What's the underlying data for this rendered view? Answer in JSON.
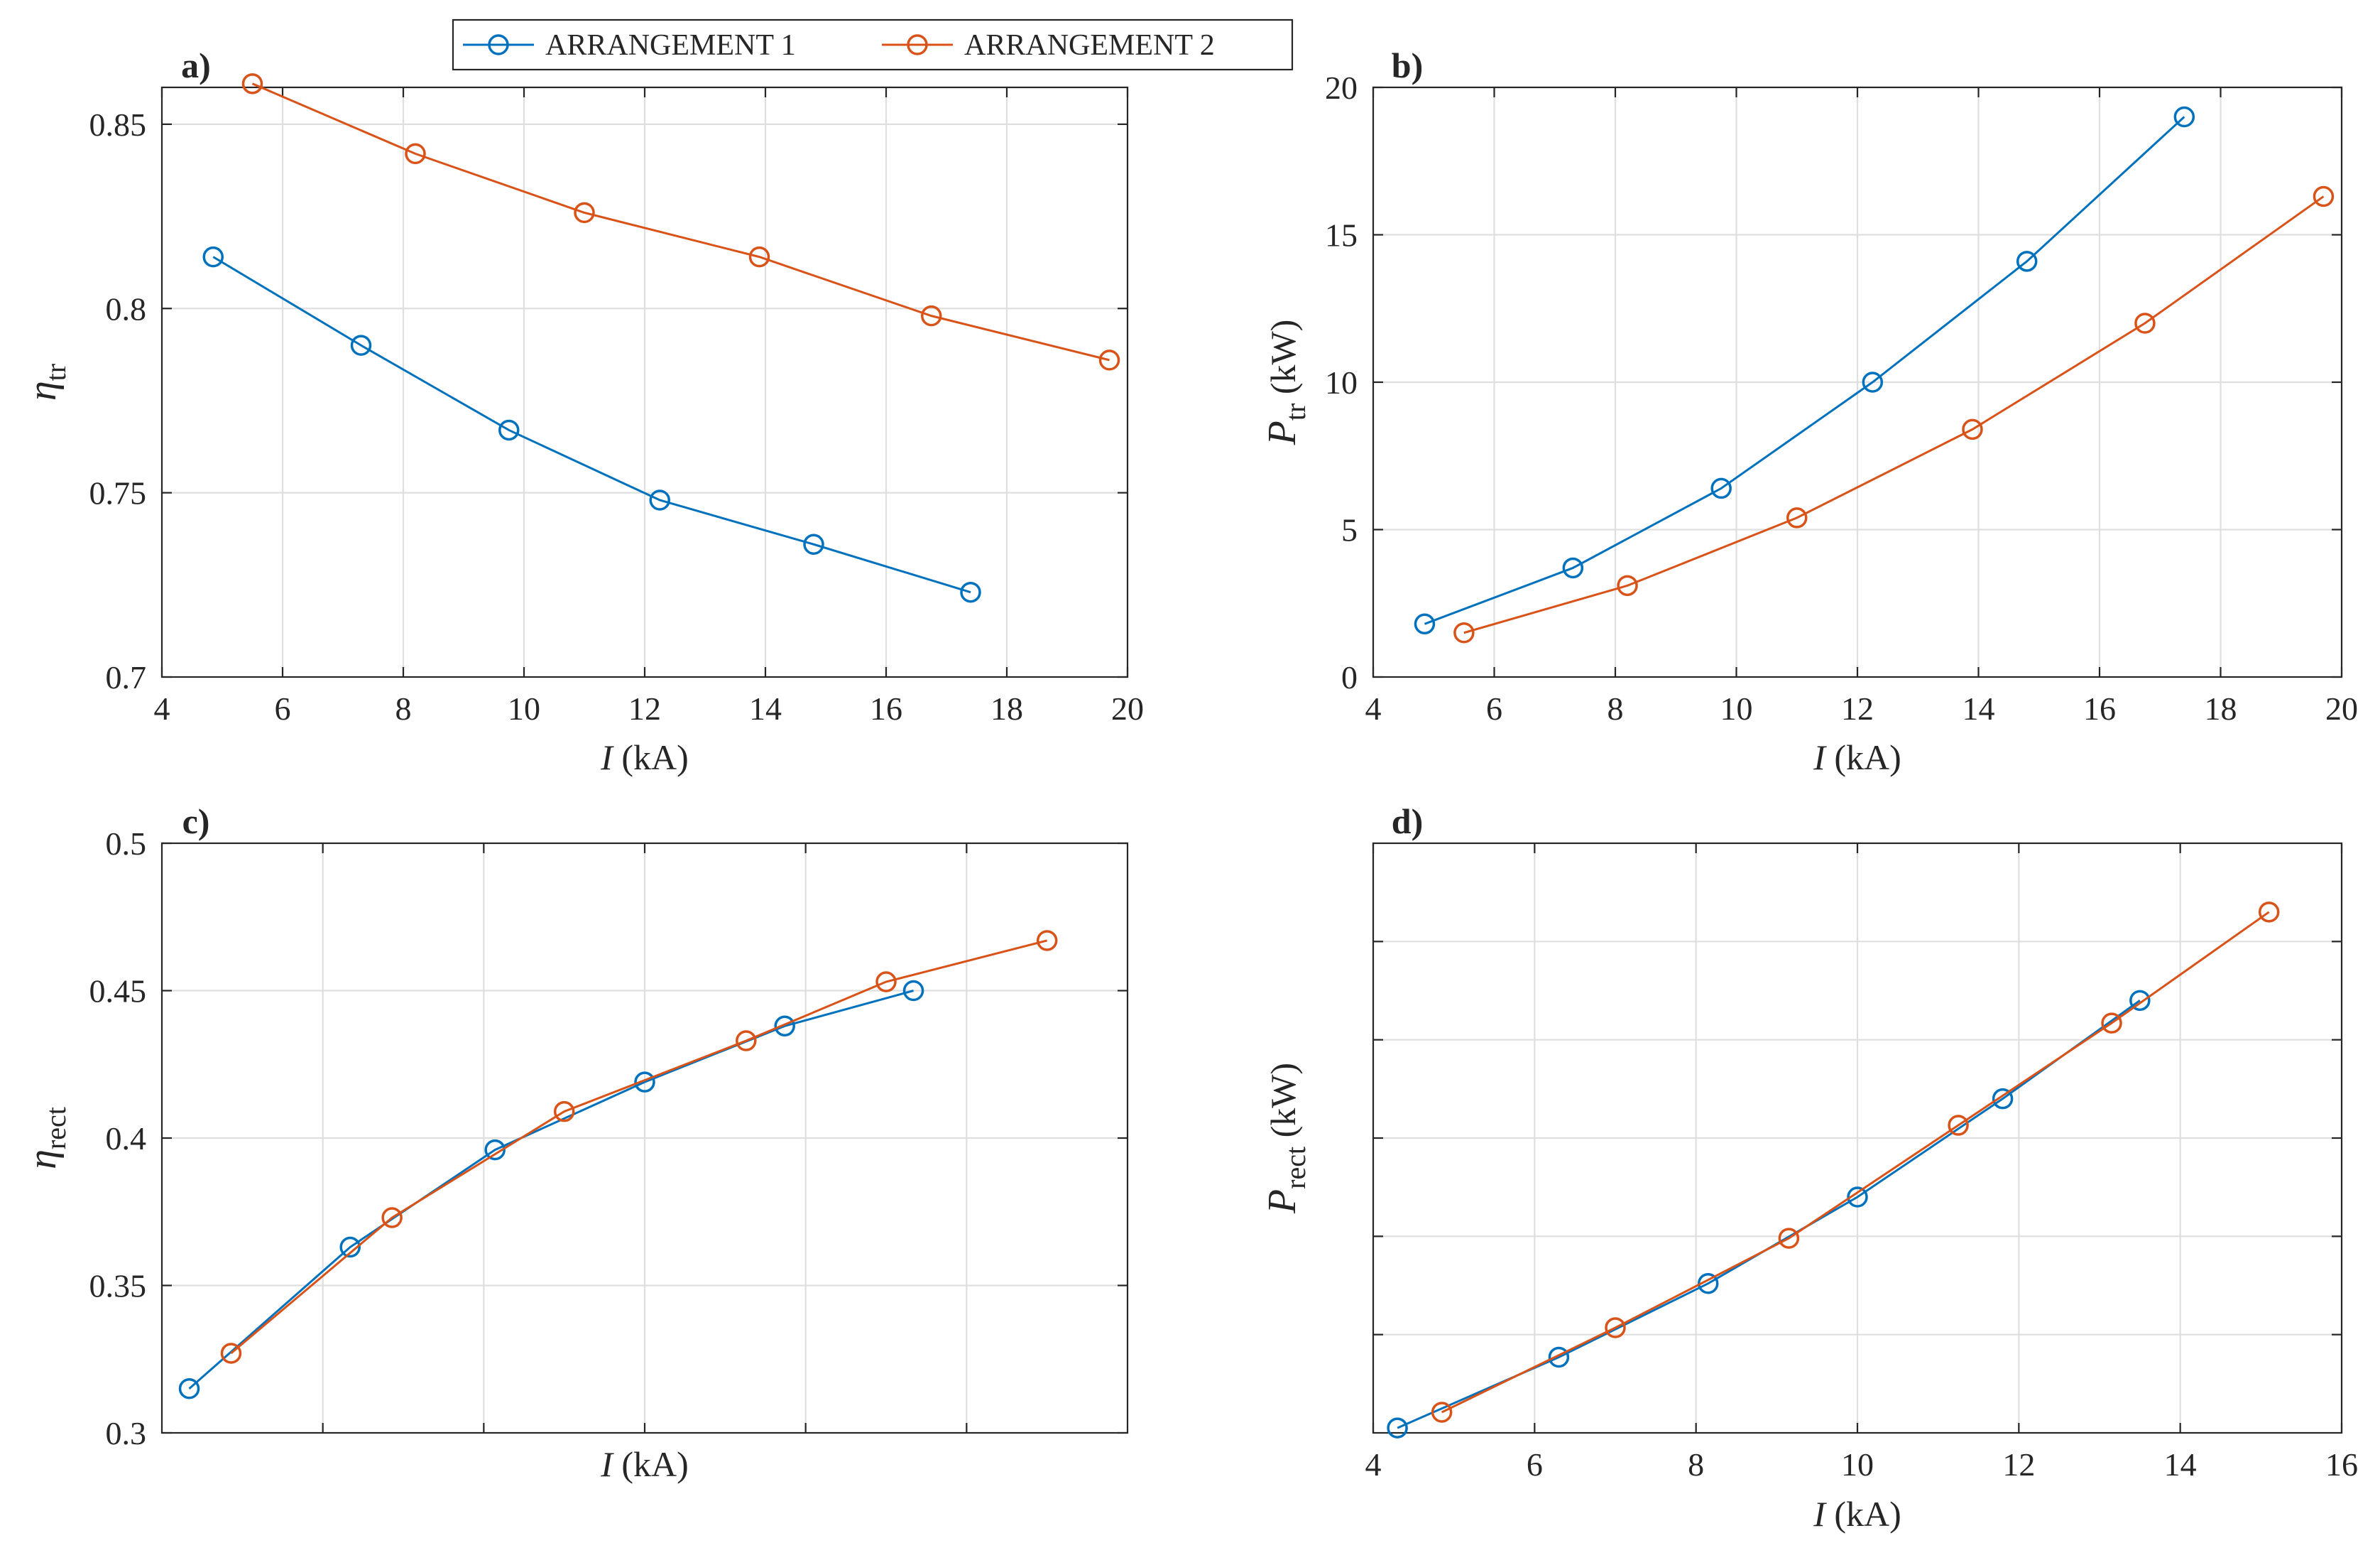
{
  "legend": {
    "items": [
      {
        "label": "ARRANGEMENT 1",
        "color": "#0072BD"
      },
      {
        "label": "ARRANGEMENT 2",
        "color": "#D95319"
      }
    ],
    "placement": "top-center",
    "marker": "circle"
  },
  "chart_data": [
    {
      "type": "line",
      "panel_label": "a)",
      "xlabel": "I (kA)",
      "ylabel": "η_tr",
      "xlim": [
        4,
        20
      ],
      "ylim": [
        0.7,
        0.86
      ],
      "xticks": [
        4,
        6,
        8,
        10,
        12,
        14,
        16,
        18,
        20
      ],
      "yticks": [
        0.7,
        0.75,
        0.8,
        0.85
      ],
      "xtick_labels": [
        "4",
        "6",
        "8",
        "10",
        "12",
        "14",
        "16",
        "18",
        "20"
      ],
      "ytick_labels": [
        "0.7",
        "0.75",
        "0.8",
        "0.85"
      ],
      "grid": true,
      "series": [
        {
          "name": "ARRANGEMENT 1",
          "x": [
            4.85,
            7.3,
            9.75,
            12.25,
            14.8,
            17.4
          ],
          "y": [
            0.814,
            0.79,
            0.767,
            0.748,
            0.736,
            0.723
          ]
        },
        {
          "name": "ARRANGEMENT 2",
          "x": [
            5.5,
            8.2,
            11.0,
            13.9,
            16.75,
            19.7
          ],
          "y": [
            0.861,
            0.842,
            0.826,
            0.814,
            0.798,
            0.786
          ]
        }
      ]
    },
    {
      "type": "line",
      "panel_label": "b)",
      "xlabel": "I (kA)",
      "ylabel": "P_tr (kW)",
      "xlim": [
        4,
        20
      ],
      "ylim": [
        0,
        20
      ],
      "xticks": [
        4,
        6,
        8,
        10,
        12,
        14,
        16,
        18,
        20
      ],
      "yticks": [
        0,
        5,
        10,
        15,
        20
      ],
      "xtick_labels": [
        "4",
        "6",
        "8",
        "10",
        "12",
        "14",
        "16",
        "18",
        "20"
      ],
      "ytick_labels": [
        "0",
        "5",
        "10",
        "15",
        "20"
      ],
      "grid": true,
      "series": [
        {
          "name": "ARRANGEMENT 1",
          "x": [
            4.85,
            7.3,
            9.75,
            12.25,
            14.8,
            17.4
          ],
          "y": [
            1.8,
            3.7,
            6.4,
            10.0,
            14.1,
            19.0
          ]
        },
        {
          "name": "ARRANGEMENT 2",
          "x": [
            5.5,
            8.2,
            11.0,
            13.9,
            16.75,
            19.7
          ],
          "y": [
            1.5,
            3.1,
            5.4,
            8.4,
            12.0,
            16.3
          ]
        }
      ]
    },
    {
      "type": "line",
      "panel_label": "c)",
      "xlabel": "I (kA)",
      "ylabel": "η_rect",
      "xlim": [
        0,
        6
      ],
      "ylim": [
        0.3,
        0.5
      ],
      "xticks": [
        1,
        2,
        3,
        4,
        5
      ],
      "yticks": [
        0.3,
        0.35,
        0.4,
        0.45,
        0.5
      ],
      "xtick_labels": [],
      "ytick_labels": [
        "0.3",
        "0.35",
        "0.4",
        "0.45",
        "0.5"
      ],
      "grid": true,
      "series": [
        {
          "name": "ARRANGEMENT 1",
          "x": [
            0.17,
            1.17,
            2.07,
            3.0,
            3.87,
            4.67
          ],
          "y": [
            0.315,
            0.363,
            0.396,
            0.419,
            0.438,
            0.45
          ]
        },
        {
          "name": "ARRANGEMENT 2",
          "x": [
            0.43,
            1.43,
            2.5,
            3.63,
            4.5,
            5.5
          ],
          "y": [
            0.327,
            0.373,
            0.409,
            0.433,
            0.453,
            0.467
          ]
        }
      ]
    },
    {
      "type": "line",
      "panel_label": "d)",
      "xlabel": "I (kA)",
      "ylabel": "P_rect (kW)",
      "xlim": [
        4,
        16
      ],
      "ylim": [
        0,
        6
      ],
      "xticks": [
        4,
        6,
        8,
        10,
        12,
        14,
        16
      ],
      "yticks": [
        1,
        2,
        3,
        4,
        5
      ],
      "xtick_labels": [
        "4",
        "6",
        "8",
        "10",
        "12",
        "14",
        "16"
      ],
      "ytick_labels": [],
      "grid": true,
      "series": [
        {
          "name": "ARRANGEMENT 1",
          "x": [
            4.3,
            6.3,
            8.15,
            10.0,
            11.8,
            13.5
          ],
          "y": [
            0.05,
            0.77,
            1.52,
            2.4,
            3.4,
            4.4
          ]
        },
        {
          "name": "ARRANGEMENT 2",
          "x": [
            4.85,
            7.0,
            9.15,
            11.25,
            13.15,
            15.1
          ],
          "y": [
            0.21,
            1.07,
            1.98,
            3.13,
            4.17,
            5.3
          ]
        }
      ]
    }
  ]
}
